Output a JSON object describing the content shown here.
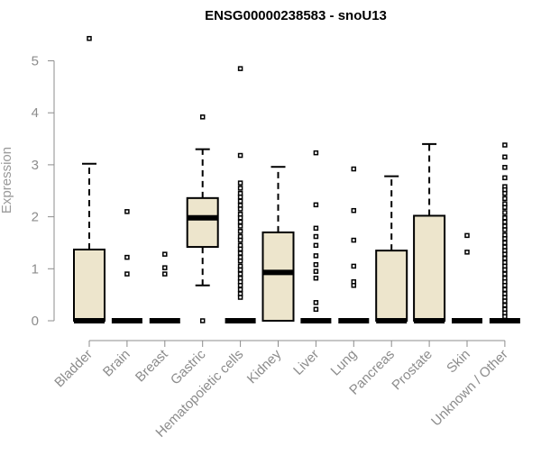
{
  "chart_data": {
    "type": "box",
    "title": "ENSG00000238583 - snoU13",
    "ylabel": "Expression",
    "xlabel": "",
    "ylim": [
      0,
      5.45
    ],
    "yticks": [
      "0",
      "1",
      "2",
      "3",
      "4",
      "5"
    ],
    "grid": false,
    "legend": "none",
    "box_fill": "#ede5cc",
    "categories": [
      "Bladder",
      "Brain",
      "Breast",
      "Gastric",
      "Hematopoietic cells",
      "Kidney",
      "Liver",
      "Lung",
      "Pancreas",
      "Prostate",
      "Skin",
      "Unknown / Other"
    ],
    "boxes": [
      {
        "q1": 0,
        "median": 0,
        "q3": 1.37,
        "whisker_low": 0,
        "whisker_high": 3.02,
        "outliers": [
          5.43
        ]
      },
      {
        "q1": 0,
        "median": 0,
        "q3": 0,
        "whisker_low": 0,
        "whisker_high": 0,
        "outliers": [
          2.1,
          1.22,
          0.9
        ]
      },
      {
        "q1": 0,
        "median": 0,
        "q3": 0,
        "whisker_low": 0,
        "whisker_high": 0,
        "outliers": [
          1.28,
          1.02,
          0.9
        ]
      },
      {
        "q1": 1.42,
        "median": 1.98,
        "q3": 2.36,
        "whisker_low": 0.68,
        "whisker_high": 3.3,
        "outliers": [
          3.92,
          0
        ]
      },
      {
        "q1": 0,
        "median": 0,
        "q3": 0,
        "whisker_low": 0,
        "whisker_high": 0,
        "outliers": [
          4.85,
          3.18,
          2.65,
          2.55,
          2.45,
          2.38,
          2.3,
          2.22,
          2.15,
          2.05,
          1.98,
          1.9,
          1.82,
          1.72,
          1.62,
          1.55,
          1.45,
          1.38,
          1.3,
          1.22,
          1.15,
          1.05,
          0.98,
          0.9,
          0.82,
          0.75,
          0.68,
          0.6,
          0.52,
          0.45
        ]
      },
      {
        "q1": 0,
        "median": 0.93,
        "q3": 1.7,
        "whisker_low": 0,
        "whisker_high": 2.96,
        "outliers": []
      },
      {
        "q1": 0,
        "median": 0,
        "q3": 0,
        "whisker_low": 0,
        "whisker_high": 0,
        "outliers": [
          3.23,
          2.23,
          1.78,
          1.62,
          1.45,
          1.25,
          1.08,
          0.95,
          0.82,
          0.35,
          0.22
        ]
      },
      {
        "q1": 0,
        "median": 0,
        "q3": 0,
        "whisker_low": 0,
        "whisker_high": 0,
        "outliers": [
          2.92,
          2.12,
          1.55,
          1.05,
          0.75,
          0.68
        ]
      },
      {
        "q1": 0,
        "median": 0,
        "q3": 1.35,
        "whisker_low": 0,
        "whisker_high": 2.78,
        "outliers": []
      },
      {
        "q1": 0,
        "median": 0,
        "q3": 2.02,
        "whisker_low": 0,
        "whisker_high": 3.4,
        "outliers": []
      },
      {
        "q1": 0,
        "median": 0,
        "q3": 0,
        "whisker_low": 0,
        "whisker_high": 0,
        "outliers": [
          1.64,
          1.32
        ]
      },
      {
        "q1": 0,
        "median": 0,
        "q3": 0,
        "whisker_low": 0,
        "whisker_high": 0,
        "outliers": [
          3.38,
          3.15,
          2.95,
          2.75,
          2.58,
          2.52,
          2.45,
          2.35,
          2.25,
          2.18,
          2.08,
          1.98,
          1.9,
          1.82,
          1.75,
          1.65,
          1.58,
          1.5,
          1.42,
          1.35,
          1.28,
          1.2,
          1.12,
          1.05,
          0.98,
          0.9,
          0.82,
          0.75,
          0.68,
          0.6,
          0.52,
          0.45,
          0.38,
          0.3,
          0.22,
          0.15,
          0.08
        ]
      }
    ]
  }
}
